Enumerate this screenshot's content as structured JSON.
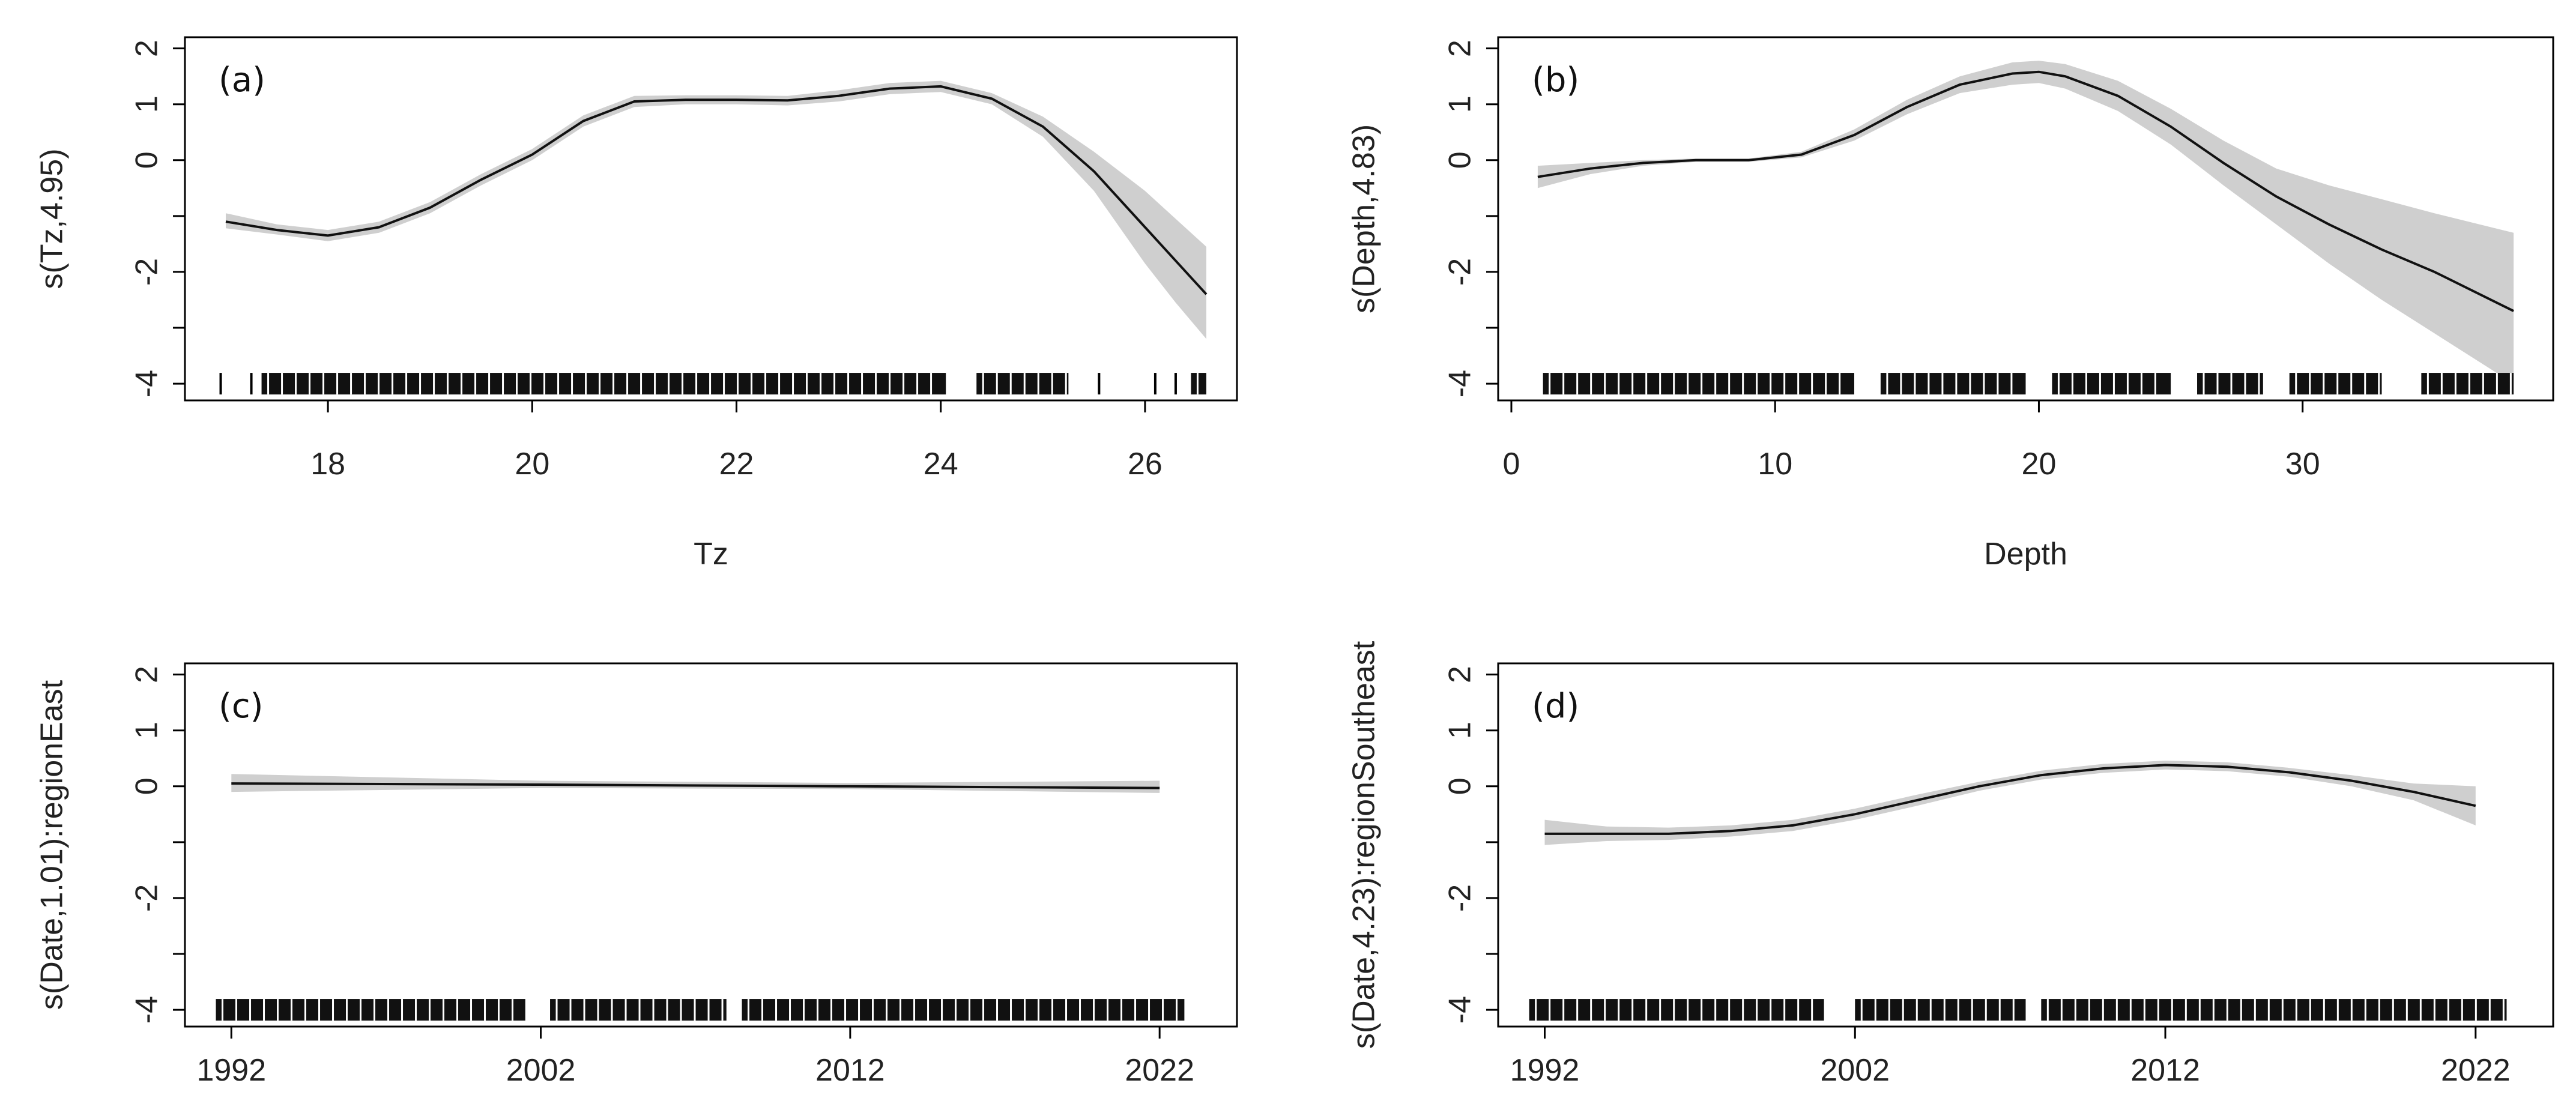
{
  "figure": {
    "layout": "2x2 GAM smooth term partial effect plots"
  },
  "chart_data": [
    {
      "type": "line",
      "panel_label": "(a)",
      "xlabel": "Tz",
      "ylabel": "s(Tz,4.95)",
      "xlim": [
        16.6,
        26.9
      ],
      "ylim": [
        -4.3,
        2.2
      ],
      "x_ticks": [
        18,
        20,
        22,
        24,
        26
      ],
      "x_tick_labels": [
        "18",
        "20",
        "22",
        "24",
        "26"
      ],
      "y_ticks": [
        -4,
        -3,
        -2,
        -1,
        0,
        1,
        2
      ],
      "y_tick_labels": [
        "-4",
        "",
        "-2",
        "",
        "0",
        "1",
        "2"
      ],
      "series": [
        {
          "name": "smooth",
          "x": [
            17.0,
            17.5,
            18.0,
            18.5,
            19.0,
            19.5,
            20.0,
            20.5,
            21.0,
            21.5,
            22.0,
            22.5,
            23.0,
            23.5,
            24.0,
            24.5,
            25.0,
            25.5,
            26.0,
            26.3,
            26.6
          ],
          "y": [
            -1.1,
            -1.25,
            -1.35,
            -1.2,
            -0.85,
            -0.35,
            0.1,
            0.7,
            1.05,
            1.08,
            1.08,
            1.07,
            1.15,
            1.28,
            1.32,
            1.1,
            0.6,
            -0.2,
            -1.2,
            -1.8,
            -2.4
          ],
          "lower": [
            -1.22,
            -1.33,
            -1.45,
            -1.3,
            -0.95,
            -0.45,
            0.0,
            0.6,
            0.95,
            1.0,
            1.0,
            0.98,
            1.05,
            1.18,
            1.22,
            1.0,
            0.42,
            -0.55,
            -1.85,
            -2.55,
            -3.2
          ],
          "upper": [
            -0.95,
            -1.15,
            -1.25,
            -1.1,
            -0.75,
            -0.25,
            0.2,
            0.8,
            1.15,
            1.16,
            1.16,
            1.15,
            1.25,
            1.38,
            1.42,
            1.2,
            0.78,
            0.15,
            -0.55,
            -1.05,
            -1.55
          ]
        }
      ],
      "rug_ranges": [
        [
          16.95,
          16.95
        ],
        [
          17.25,
          17.25
        ],
        [
          17.35,
          24.05
        ],
        [
          24.35,
          25.25
        ],
        [
          25.55,
          25.55
        ],
        [
          26.1,
          26.1
        ],
        [
          26.3,
          26.3
        ],
        [
          26.45,
          26.6
        ]
      ]
    },
    {
      "type": "line",
      "panel_label": "(b)",
      "xlabel": "Depth",
      "ylabel": "s(Depth,4.83)",
      "xlim": [
        -0.5,
        39.5
      ],
      "ylim": [
        -4.3,
        2.2
      ],
      "x_ticks": [
        0,
        10,
        20,
        30
      ],
      "x_tick_labels": [
        "0",
        "10",
        "20",
        "30"
      ],
      "y_ticks": [
        -4,
        -3,
        -2,
        -1,
        0,
        1,
        2
      ],
      "y_tick_labels": [
        "-4",
        "",
        "-2",
        "",
        "0",
        "1",
        "2"
      ],
      "series": [
        {
          "name": "smooth",
          "x": [
            1,
            3,
            5,
            7,
            9,
            11,
            13,
            15,
            17,
            19,
            20,
            21,
            23,
            25,
            27,
            29,
            31,
            33,
            35,
            38
          ],
          "y": [
            -0.3,
            -0.15,
            -0.05,
            0.0,
            0.0,
            0.1,
            0.45,
            0.95,
            1.35,
            1.55,
            1.58,
            1.5,
            1.15,
            0.6,
            -0.05,
            -0.65,
            -1.15,
            -1.6,
            -2.0,
            -2.7
          ],
          "lower": [
            -0.5,
            -0.25,
            -0.1,
            -0.03,
            -0.03,
            0.05,
            0.35,
            0.82,
            1.2,
            1.35,
            1.38,
            1.28,
            0.88,
            0.28,
            -0.45,
            -1.15,
            -1.85,
            -2.5,
            -3.1,
            -4.0
          ],
          "upper": [
            -0.1,
            -0.05,
            0.0,
            0.03,
            0.03,
            0.15,
            0.55,
            1.08,
            1.5,
            1.75,
            1.78,
            1.72,
            1.42,
            0.92,
            0.35,
            -0.15,
            -0.45,
            -0.7,
            -0.95,
            -1.3
          ]
        }
      ],
      "rug_ranges": [
        [
          1.2,
          13.0
        ],
        [
          14.0,
          19.5
        ],
        [
          20.5,
          25.0
        ],
        [
          26.0,
          28.5
        ],
        [
          29.5,
          33.0
        ],
        [
          34.5,
          38.0
        ]
      ]
    },
    {
      "type": "line",
      "panel_label": "(c)",
      "xlabel": "",
      "ylabel": "s(Date,1.01):regionEast",
      "xlim": [
        1990.5,
        2024.5
      ],
      "ylim": [
        -4.3,
        2.2
      ],
      "x_ticks": [
        1992,
        2002,
        2012,
        2022
      ],
      "x_tick_labels": [
        "1992",
        "2002",
        "2012",
        "2022"
      ],
      "y_ticks": [
        -4,
        -3,
        -2,
        -1,
        0,
        1,
        2
      ],
      "y_tick_labels": [
        "-4",
        "",
        "-2",
        "",
        "0",
        "1",
        "2"
      ],
      "series": [
        {
          "name": "smooth",
          "x": [
            1992,
            2002,
            2012,
            2022
          ],
          "y": [
            0.05,
            0.03,
            0.0,
            -0.03
          ],
          "lower": [
            -0.1,
            -0.03,
            -0.05,
            -0.12
          ],
          "upper": [
            0.22,
            0.1,
            0.06,
            0.1
          ]
        }
      ],
      "rug_ranges": [
        [
          1991.5,
          2001.5
        ],
        [
          2002.3,
          2008.0
        ],
        [
          2008.5,
          2022.8
        ]
      ]
    },
    {
      "type": "line",
      "panel_label": "(d)",
      "xlabel": "",
      "ylabel": "s(Date,4.23):regionSoutheast",
      "xlim": [
        1990.5,
        2024.5
      ],
      "ylim": [
        -4.3,
        2.2
      ],
      "x_ticks": [
        1992,
        2002,
        2012,
        2022
      ],
      "x_tick_labels": [
        "1992",
        "2002",
        "2012",
        "2022"
      ],
      "y_ticks": [
        -4,
        -3,
        -2,
        -1,
        0,
        1,
        2
      ],
      "y_tick_labels": [
        "-4",
        "",
        "-2",
        "",
        "0",
        "1",
        "2"
      ],
      "series": [
        {
          "name": "smooth",
          "x": [
            1992,
            1994,
            1996,
            1998,
            2000,
            2002,
            2004,
            2006,
            2008,
            2010,
            2012,
            2014,
            2016,
            2018,
            2020,
            2022
          ],
          "y": [
            -0.85,
            -0.85,
            -0.85,
            -0.8,
            -0.7,
            -0.5,
            -0.25,
            0.0,
            0.2,
            0.32,
            0.38,
            0.35,
            0.25,
            0.1,
            -0.1,
            -0.35
          ],
          "lower": [
            -1.05,
            -0.98,
            -0.96,
            -0.9,
            -0.8,
            -0.6,
            -0.35,
            -0.08,
            0.12,
            0.24,
            0.3,
            0.27,
            0.17,
            0.0,
            -0.25,
            -0.7
          ],
          "upper": [
            -0.6,
            -0.72,
            -0.74,
            -0.7,
            -0.6,
            -0.4,
            -0.15,
            0.08,
            0.28,
            0.4,
            0.46,
            0.43,
            0.33,
            0.2,
            0.05,
            0.0
          ]
        }
      ],
      "rug_ranges": [
        [
          1991.5,
          2001.0
        ],
        [
          2002.0,
          2007.5
        ],
        [
          2008.0,
          2023.0
        ]
      ]
    }
  ]
}
